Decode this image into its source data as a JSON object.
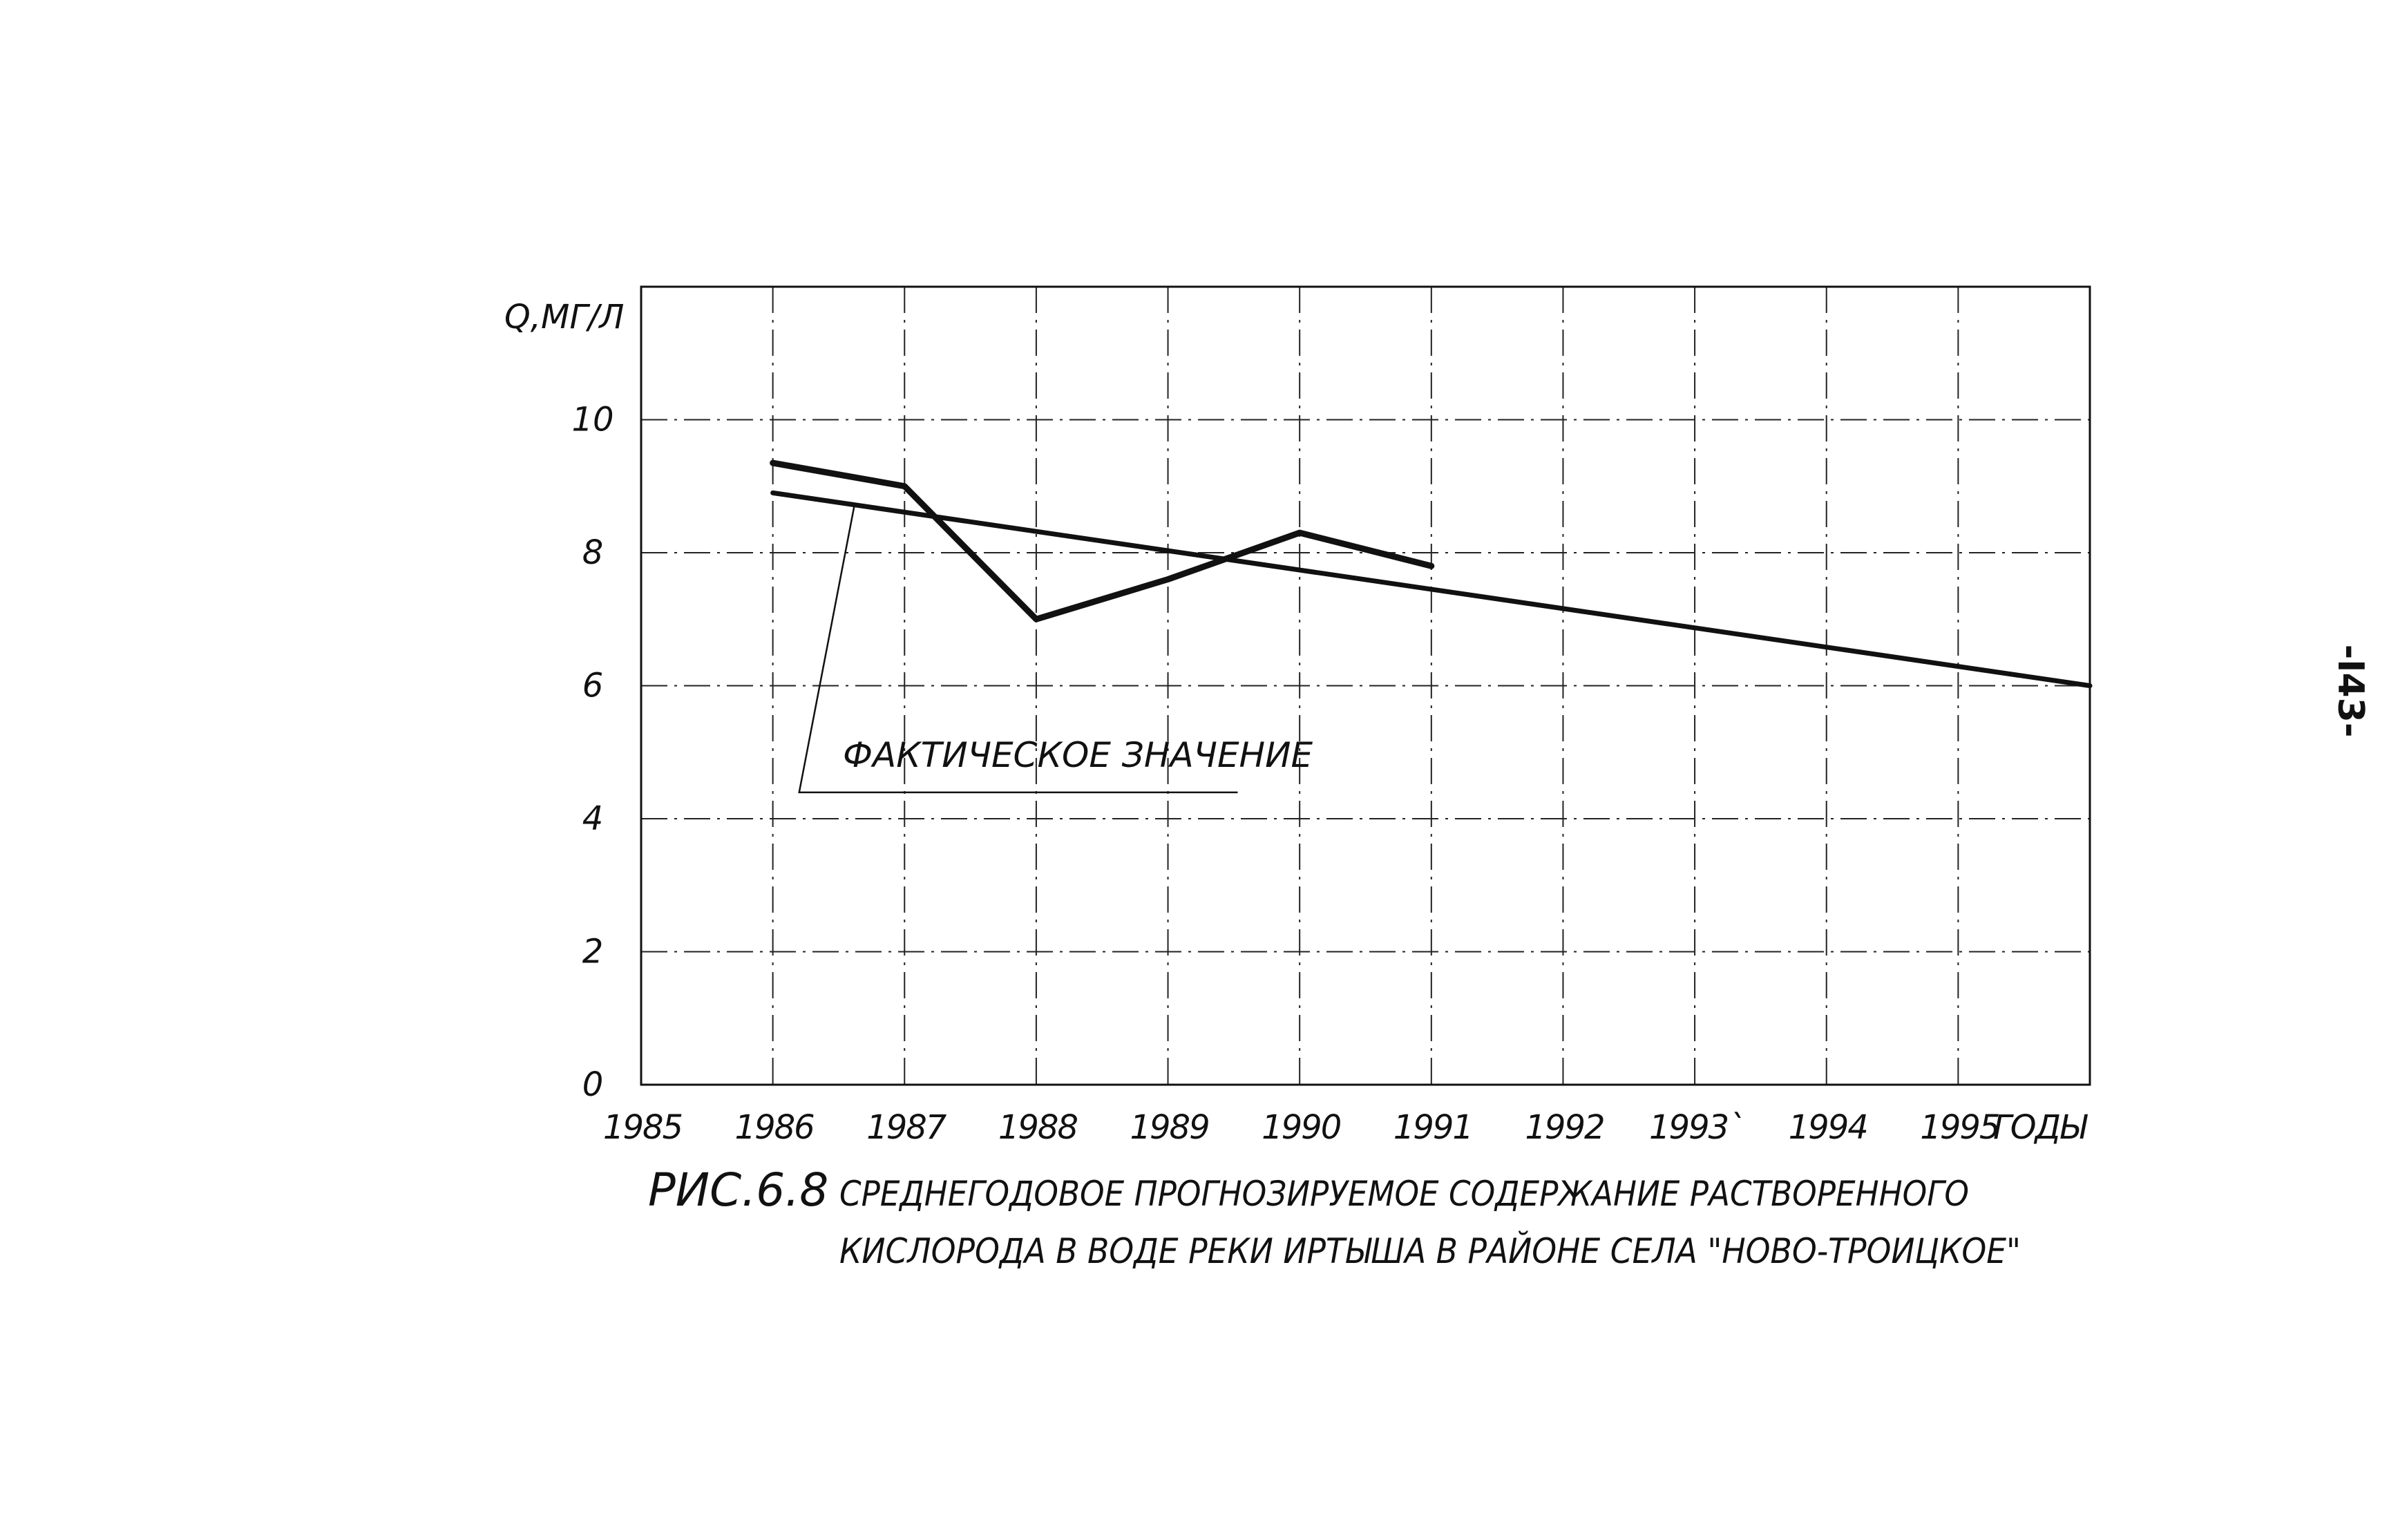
{
  "page_number": "-I43-",
  "caption": {
    "fig_label": "РИС.6.8",
    "line1": "СРЕДНЕГОДОВОЕ ПРОГНОЗИРУЕМОЕ СОДЕРЖАНИЕ РАСТВОРЕННОГО",
    "line2": "КИСЛОРОДА В ВОДЕ РЕКИ ИРТЫША В РАЙОНЕ СЕЛА \"НОВО-ТРОИЦКОЕ\""
  },
  "chart_data": {
    "type": "line",
    "title": "",
    "ylabel": "Q,МГ/Л",
    "xlabel": "ГОДЫ",
    "ylim": [
      0,
      12
    ],
    "xlim": [
      1985,
      1996
    ],
    "grid": true,
    "y_ticks": [
      0,
      2,
      4,
      6,
      8,
      10
    ],
    "x_ticks": [
      1985,
      1986,
      1987,
      1988,
      1989,
      1990,
      1991,
      1992,
      1993,
      1994,
      1995
    ],
    "x_tick_labels": [
      "1985",
      "1986",
      "1987",
      "1988",
      "1989",
      "1990",
      "1991",
      "1992",
      "1993`",
      "1994",
      "1995"
    ],
    "annotation": "ФАКТИЧЕСКОЕ ЗНАЧЕНИЕ",
    "series": [
      {
        "x": [
          1986,
          1987,
          1988,
          1989,
          1990,
          1991
        ],
        "y": [
          9.35,
          9.0,
          7.0,
          7.6,
          8.3,
          7.8
        ]
      },
      {
        "x": [
          1986,
          1996
        ],
        "y": [
          8.9,
          6.0
        ]
      }
    ]
  }
}
